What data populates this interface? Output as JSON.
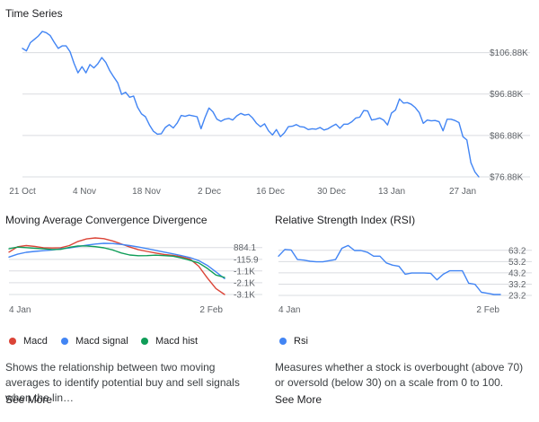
{
  "colors": {
    "blue": "#4285f4",
    "red": "#db4437",
    "green": "#0f9d58",
    "grid": "#dadce0",
    "text": "#5f6368"
  },
  "chart_data": [
    {
      "type": "line",
      "title": "Time Series",
      "x_ticks": [
        "21 Oct",
        "4 Nov",
        "18 Nov",
        "2 Dec",
        "16 Dec",
        "30 Dec",
        "13 Jan",
        "27 Jan"
      ],
      "y_ticks": [
        "$106.88K",
        "$96.88K",
        "$86.88K",
        "$76.88K"
      ],
      "y_tick_values": [
        106880,
        96880,
        86880,
        76880
      ],
      "ylim": [
        76880,
        112000
      ],
      "grid": true,
      "series": [
        {
          "values": [
            107900,
            107300,
            109300,
            110100,
            110900,
            112000,
            111700,
            111000,
            109400,
            107900,
            108500,
            108500,
            107100,
            104300,
            102000,
            103500,
            102000,
            104000,
            103200,
            104200,
            105700,
            104500,
            102500,
            101000,
            99600,
            96800,
            97300,
            96100,
            96400,
            93700,
            92100,
            91400,
            89400,
            87900,
            87200,
            87300,
            88800,
            89500,
            88700,
            89900,
            91700,
            91500,
            91800,
            91600,
            91400,
            88500,
            91200,
            93500,
            92600,
            90800,
            90300,
            90800,
            91000,
            90600,
            91600,
            92200,
            91800,
            92000,
            91100,
            89800,
            89000,
            89700,
            88000,
            87000,
            88300,
            86600,
            87500,
            89000,
            89100,
            89500,
            89000,
            88900,
            88300,
            88500,
            88400,
            88800,
            88200,
            88500,
            89100,
            89600,
            88600,
            89600,
            89600,
            90200,
            91100,
            91300,
            92900,
            92800,
            90600,
            90800,
            91100,
            90600,
            89400,
            92300,
            93000,
            95700,
            94700,
            94800,
            94400,
            93600,
            92400,
            89800,
            90600,
            90400,
            90500,
            90200,
            88000,
            90800,
            90800,
            90500,
            90000,
            86600,
            85800,
            80300,
            78100,
            76880
          ]
        }
      ]
    },
    {
      "type": "line",
      "title": "Moving Average Convergence Divergence",
      "x_ticks": [
        "4 Jan",
        "2 Feb"
      ],
      "y_ticks": [
        "884.1",
        "-115.9",
        "-1.1K",
        "-2.1K",
        "-3.1K"
      ],
      "y_tick_values": [
        884.1,
        -115.9,
        -1100,
        -2100,
        -3100
      ],
      "ylim": [
        -3100,
        1700
      ],
      "grid": true,
      "series": [
        {
          "name": "Macd",
          "values": [
            500,
            950,
            1050,
            980,
            870,
            850,
            870,
            1050,
            1400,
            1620,
            1700,
            1640,
            1450,
            1200,
            930,
            700,
            560,
            420,
            300,
            220,
            100,
            -100,
            -700,
            -1700,
            -2600,
            -3100
          ]
        },
        {
          "name": "Macd signal",
          "values": [
            80,
            320,
            480,
            560,
            620,
            680,
            770,
            850,
            970,
            1080,
            1180,
            1240,
            1230,
            1150,
            1050,
            930,
            790,
            650,
            500,
            350,
            200,
            30,
            -230,
            -630,
            -1180,
            -1750
          ]
        },
        {
          "name": "Macd hist",
          "values": [
            780,
            920,
            880,
            820,
            780,
            720,
            730,
            900,
            1020,
            1020,
            960,
            860,
            690,
            430,
            250,
            190,
            200,
            240,
            200,
            150,
            0,
            -200,
            -420,
            -880,
            -1450,
            -1650
          ]
        }
      ]
    },
    {
      "type": "line",
      "title": "Relative Strength Index (RSI)",
      "x_ticks": [
        "4 Jan",
        "2 Feb"
      ],
      "y_ticks": [
        "63.2",
        "53.2",
        "43.2",
        "33.2",
        "23.2"
      ],
      "y_tick_values": [
        63.2,
        53.2,
        43.2,
        33.2,
        23.2
      ],
      "ylim": [
        23.2,
        67
      ],
      "grid": true,
      "series": [
        {
          "name": "Rsi",
          "values": [
            58,
            64,
            63.5,
            55,
            54.5,
            53.5,
            53,
            53,
            54,
            55,
            65,
            67.5,
            63,
            63,
            61.5,
            58,
            58,
            52,
            50,
            49,
            42,
            43,
            43,
            43,
            42.8,
            37,
            42,
            45,
            45,
            45,
            34,
            33,
            26,
            25,
            24,
            24
          ]
        }
      ]
    }
  ],
  "macd_legend": [
    {
      "label": "Macd",
      "color": "#db4437"
    },
    {
      "label": "Macd signal",
      "color": "#4285f4"
    },
    {
      "label": "Macd hist",
      "color": "#0f9d58"
    }
  ],
  "rsi_legend": [
    {
      "label": "Rsi",
      "color": "#4285f4"
    }
  ],
  "macd_description": "Shows the relationship between two moving averages to identify potential buy and sell signals when the lin…",
  "rsi_description": "Measures whether a stock is overbought (above 70) or oversold (below 30) on a scale from 0 to 100.",
  "see_more_label": "See More"
}
